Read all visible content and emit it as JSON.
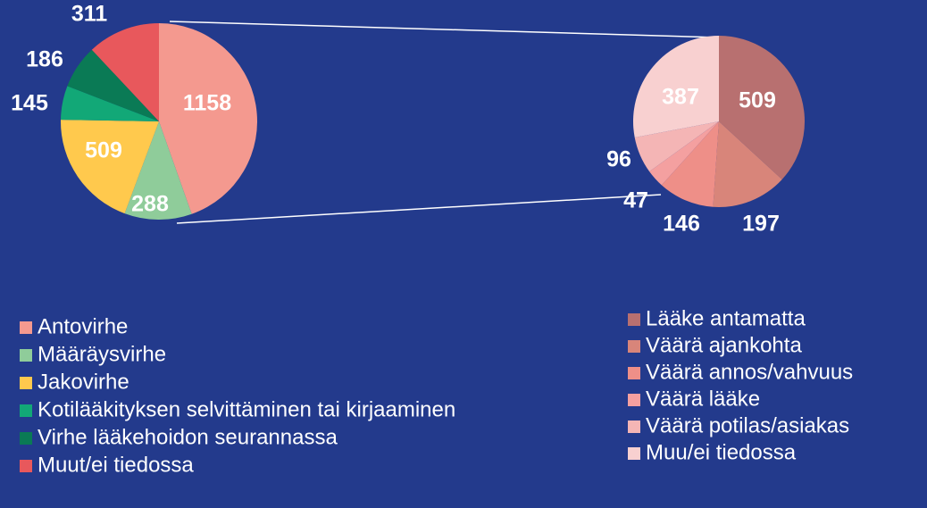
{
  "chart_data": [
    {
      "type": "pie",
      "categories": [
        "Antovirhe",
        "Määräysvirhe",
        "Jakovirhe",
        "Kotilääkityksen selvittäminen tai kirjaaminen",
        "Virhe lääkehoidon seurannassa",
        "Muut/ei tiedossa"
      ],
      "values": [
        1158,
        288,
        509,
        145,
        186,
        311
      ],
      "colors": [
        "#f4998f",
        "#8fcc9a",
        "#ffc94d",
        "#12a877",
        "#0a7a55",
        "#e8585c"
      ]
    },
    {
      "type": "pie",
      "categories": [
        "Lääke antamatta",
        "Väärä ajankohta",
        "Väärä annos/vahvuus",
        "Väärä lääke",
        "Väärä potilas/asiakas",
        "Muu/ei tiedossa"
      ],
      "values": [
        509,
        197,
        146,
        47,
        96,
        387
      ],
      "colors": [
        "#b87070",
        "#d8857a",
        "#ee8f88",
        "#f4a0a0",
        "#f4b5b5",
        "#f8d0d0"
      ]
    }
  ]
}
